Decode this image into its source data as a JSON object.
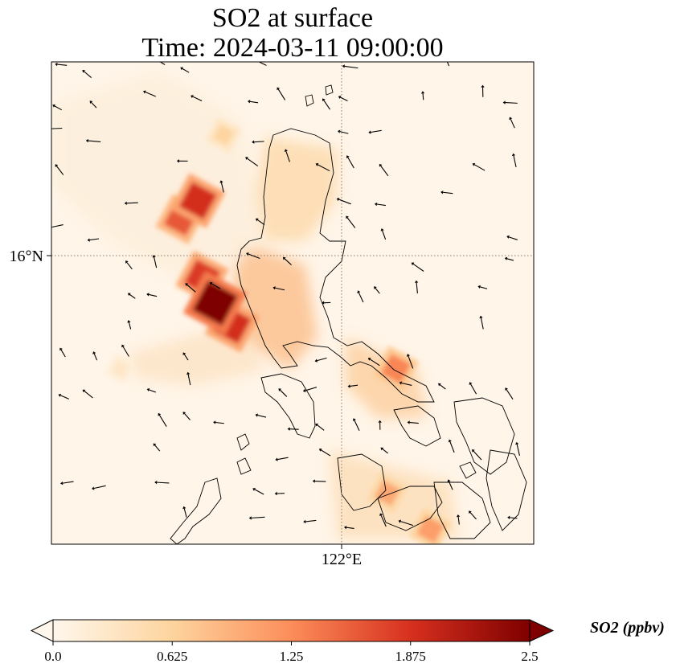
{
  "chart_data": {
    "type": "heatmap",
    "title": "SO2 at surface",
    "subtitle": "Time: 2024-03-11 09:00:00",
    "xlabel": "",
    "ylabel": "",
    "x_ticks": [
      {
        "value": 122,
        "label": "122°E"
      }
    ],
    "y_ticks": [
      {
        "value": 16,
        "label": "16°N"
      }
    ],
    "lon_range": [
      118.6,
      124.2
    ],
    "lat_range": [
      11.6,
      18.2
    ],
    "gridlines": "dotted, at labeled ticks",
    "colormap": "OrRd",
    "colorbar": {
      "label": "SO2 (ppbv)",
      "ticks": [
        "0.0",
        "0.625",
        "1.25",
        "1.875",
        "2.5"
      ],
      "vmin": 0.0,
      "vmax": 2.5,
      "extend": "both",
      "orientation": "horizontal",
      "colors": [
        "#fff7ec",
        "#fdd49e",
        "#fc8d59",
        "#d7301f",
        "#7f0000"
      ]
    },
    "hotspots": [
      {
        "lon": 120.5,
        "lat": 14.9,
        "value": 2.5
      },
      {
        "lon": 120.35,
        "lat": 15.25,
        "value": 1.8
      },
      {
        "lon": 120.7,
        "lat": 14.6,
        "value": 1.9
      },
      {
        "lon": 120.3,
        "lat": 16.3,
        "value": 1.9
      },
      {
        "lon": 120.1,
        "lat": 16.05,
        "value": 1.6
      },
      {
        "lon": 122.6,
        "lat": 14.0,
        "value": 1.3
      },
      {
        "lon": 122.5,
        "lat": 12.3,
        "value": 1.0
      },
      {
        "lon": 123.0,
        "lat": 11.8,
        "value": 1.1
      },
      {
        "lon": 120.6,
        "lat": 17.2,
        "value": 0.6
      },
      {
        "lon": 119.4,
        "lat": 14.0,
        "value": 0.3
      }
    ],
    "wind_vectors": "black quiver arrows showing surface wind, mostly from the NE/E over the domain"
  }
}
